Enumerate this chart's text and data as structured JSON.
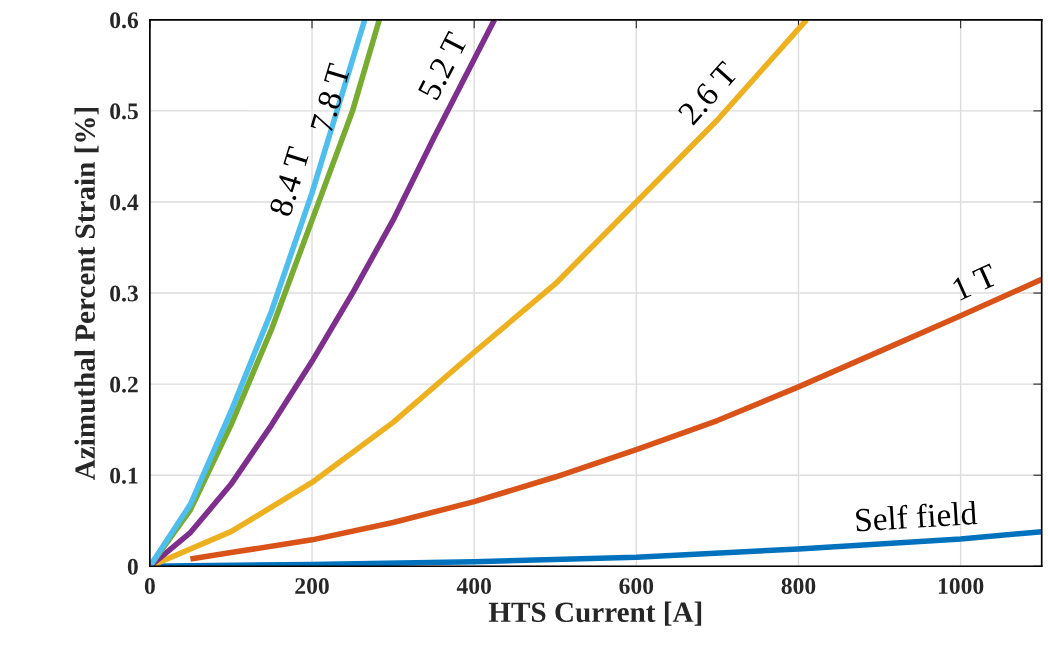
{
  "chart_data": {
    "type": "line",
    "xlabel": "HTS Current [A]",
    "ylabel": "Azimuthal Percent Strain [%]",
    "xlim": [
      0,
      1100
    ],
    "xticks": [
      0,
      200,
      400,
      600,
      800,
      1000
    ],
    "ylim": [
      0,
      0.6
    ],
    "yticks": [
      0,
      0.1,
      0.2,
      0.3,
      0.4,
      0.5,
      0.6
    ],
    "grid": true,
    "legend": false,
    "marker": "none",
    "line_style": "solid",
    "series": [
      {
        "name": "Self field",
        "color": "#0072bd",
        "x": [
          0,
          200,
          400,
          600,
          800,
          1000,
          1100
        ],
        "values": [
          0,
          0.002,
          0.005,
          0.01,
          0.019,
          0.03,
          0.038
        ]
      },
      {
        "name": "1 T",
        "color": "#d95319",
        "x": [
          50,
          100,
          200,
          300,
          400,
          500,
          600,
          700,
          800,
          900,
          1000,
          1100
        ],
        "values": [
          0.008,
          0.015,
          0.029,
          0.048,
          0.071,
          0.098,
          0.128,
          0.16,
          0.197,
          0.236,
          0.275,
          0.315
        ]
      },
      {
        "name": "2.6 T",
        "color": "#edb120",
        "x": [
          0,
          100,
          200,
          300,
          400,
          500,
          600,
          700,
          810
        ],
        "values": [
          0,
          0.038,
          0.092,
          0.158,
          0.235,
          0.31,
          0.4,
          0.49,
          0.6
        ]
      },
      {
        "name": "5.2 T",
        "color": "#7e2f8e",
        "x": [
          0,
          50,
          100,
          150,
          200,
          250,
          300,
          350,
          425
        ],
        "values": [
          0,
          0.037,
          0.09,
          0.155,
          0.225,
          0.3,
          0.38,
          0.47,
          0.6
        ]
      },
      {
        "name": "7.8 T",
        "color": "#77ac30",
        "x": [
          0,
          50,
          100,
          150,
          200,
          250,
          283
        ],
        "values": [
          0,
          0.062,
          0.155,
          0.26,
          0.38,
          0.5,
          0.6
        ]
      },
      {
        "name": "8.4 T",
        "color": "#4dbeee",
        "x": [
          0,
          50,
          100,
          150,
          200,
          265
        ],
        "values": [
          0,
          0.068,
          0.17,
          0.28,
          0.41,
          0.6
        ]
      }
    ]
  }
}
